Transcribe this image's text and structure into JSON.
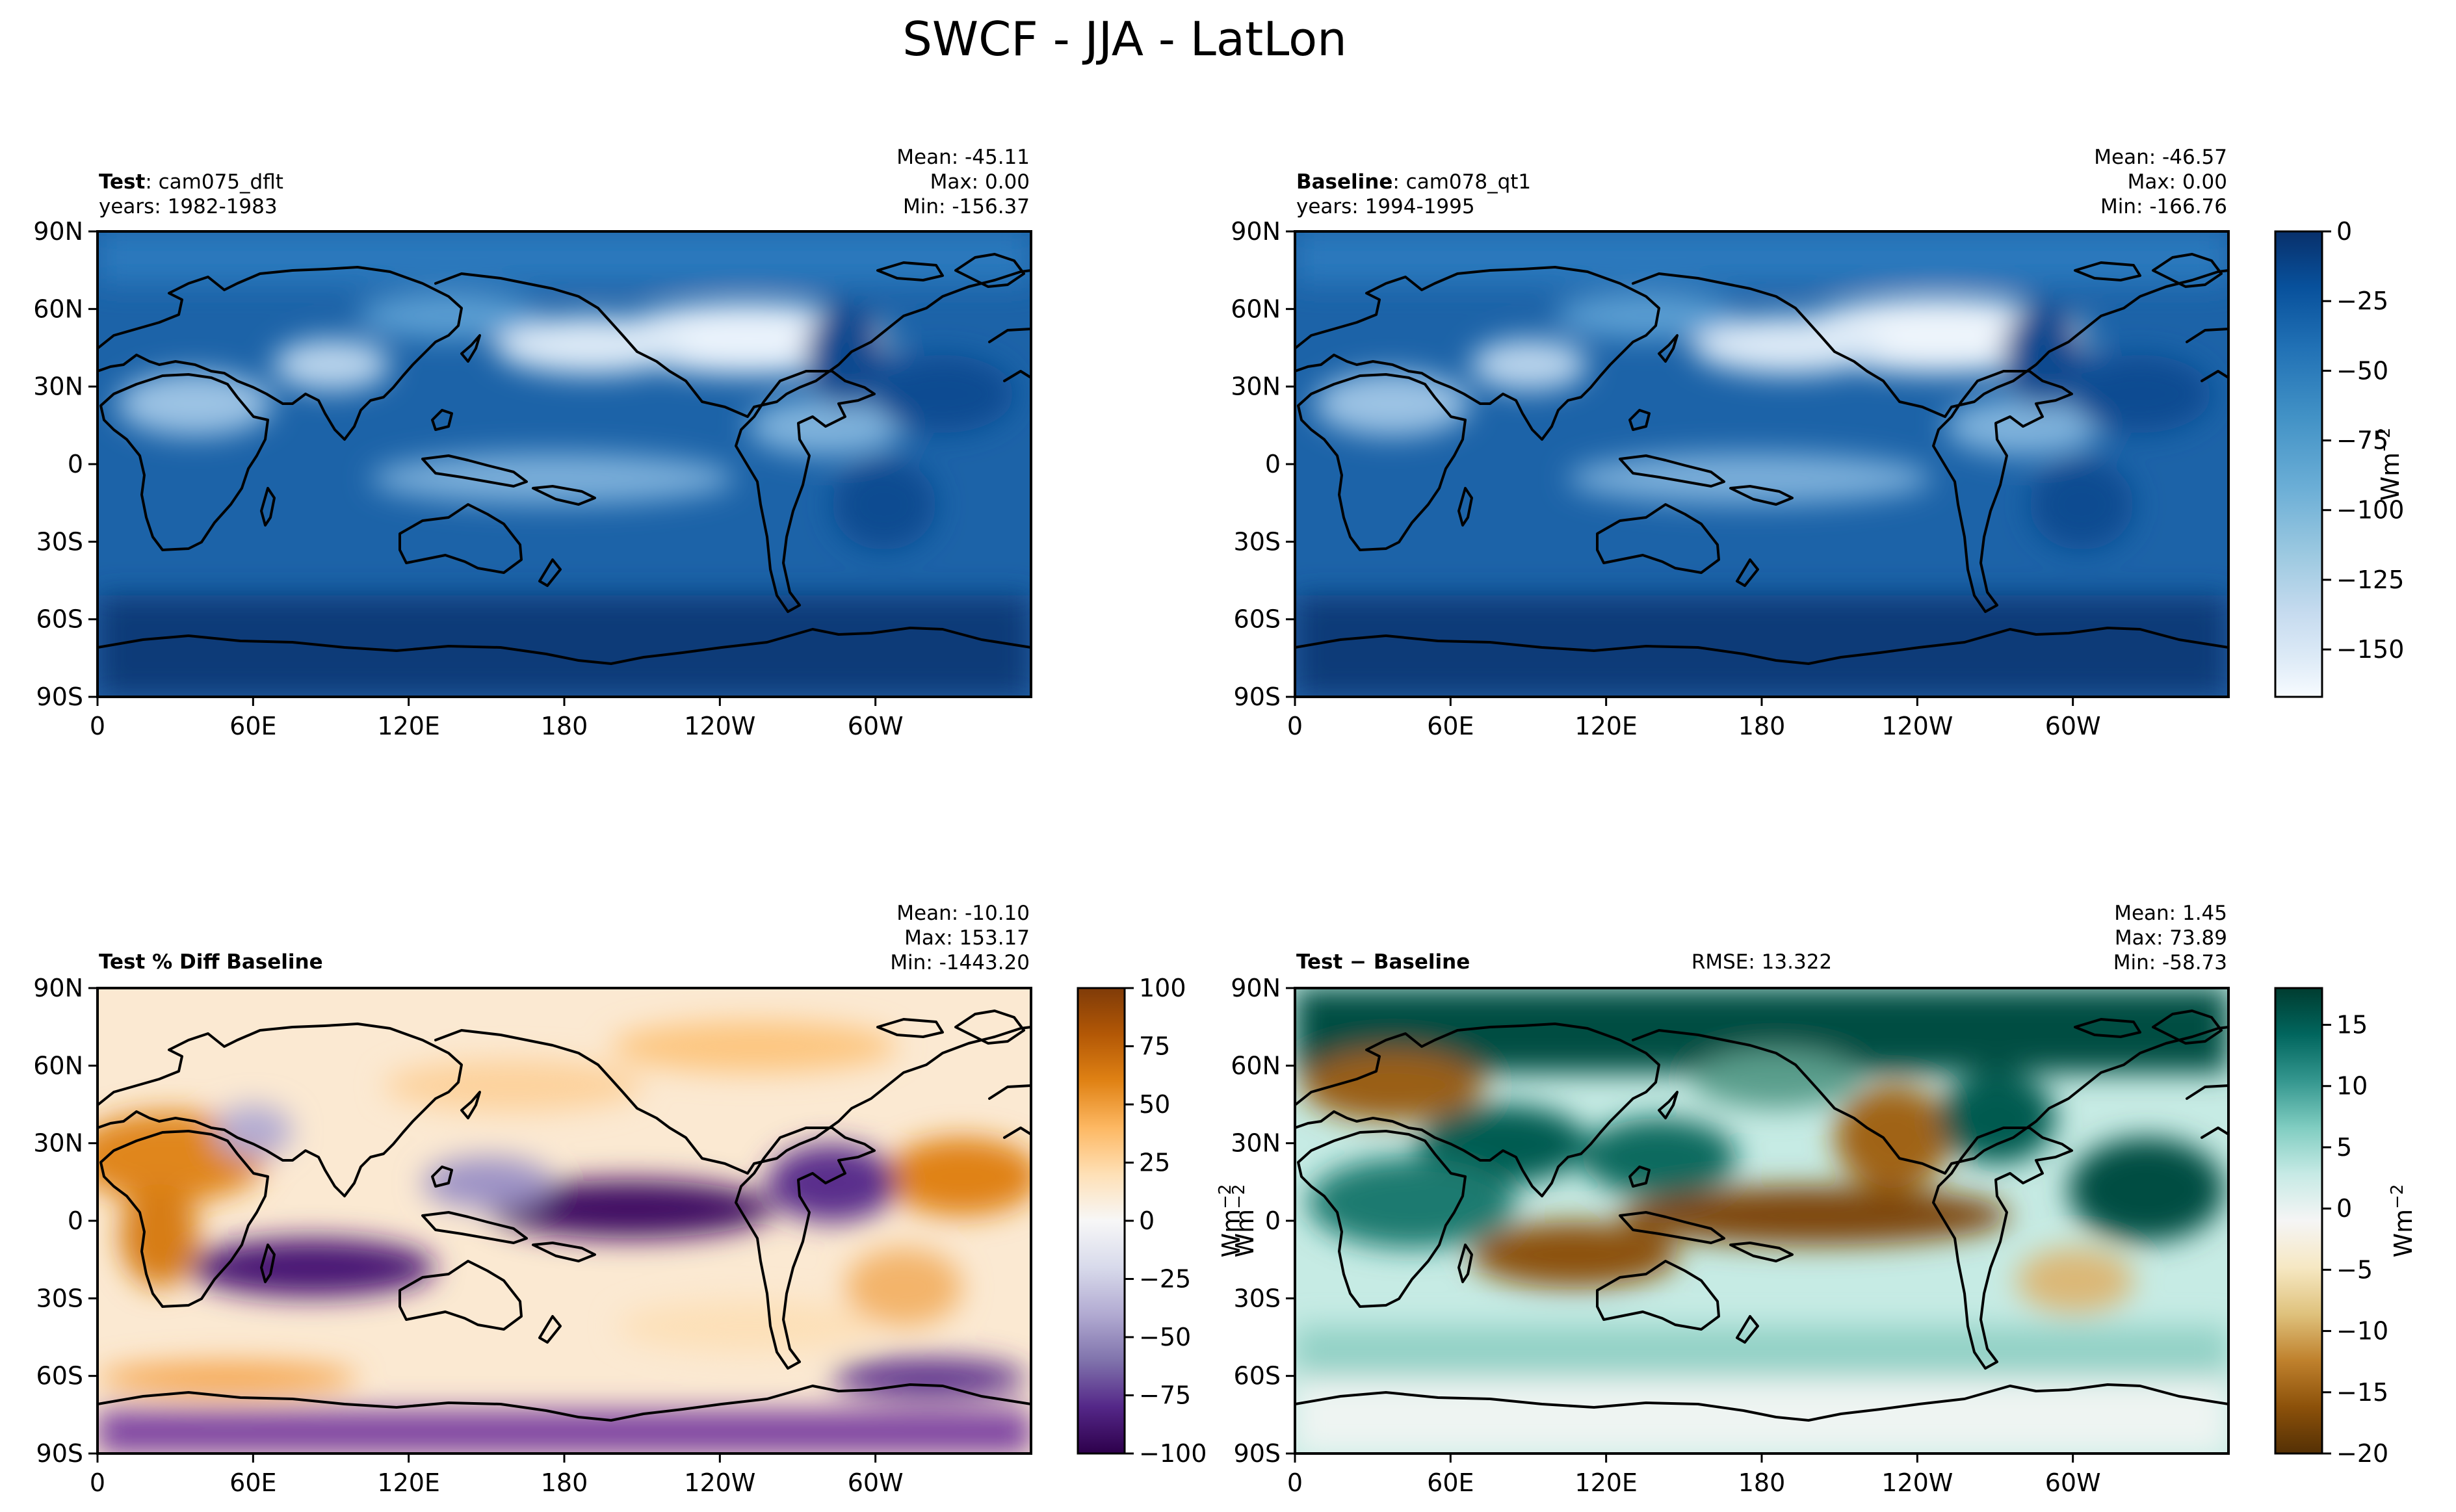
{
  "suptitle": "SWCF - JJA - LatLon",
  "colors": {
    "blues": [
      "#f7fbff",
      "#deebf7",
      "#c6dbef",
      "#9ecae1",
      "#6baed6",
      "#4292c6",
      "#2171b5",
      "#08519c",
      "#08306b"
    ],
    "puor": [
      "#2d004b",
      "#542788",
      "#8073ac",
      "#b2abd2",
      "#d8daeb",
      "#f7f7f7",
      "#fee0b6",
      "#fdb863",
      "#e08214",
      "#b35806",
      "#7f3b08"
    ],
    "brbg": [
      "#543005",
      "#8c510a",
      "#bf812d",
      "#dfc27d",
      "#f6e8c3",
      "#f5f5f5",
      "#c7eae5",
      "#80cdc1",
      "#35978f",
      "#01665e",
      "#003c30"
    ]
  },
  "chart_data": [
    {
      "type": "heatmap",
      "panel": "top-left",
      "title_bold": "Test",
      "title_rest": ": cam075_dflt",
      "years": "years: 1982-1983",
      "stats": {
        "mean": "Mean: -45.11",
        "max": "Max:  0.00",
        "min": "Min: -156.37"
      },
      "x_ticklabels": [
        "0",
        "60E",
        "120E",
        "180",
        "120W",
        "60W"
      ],
      "y_ticklabels": [
        "90N",
        "60N",
        "30N",
        "0",
        "30S",
        "60S",
        "90S"
      ],
      "xlim": [
        0,
        360
      ],
      "ylim": [
        -90,
        90
      ],
      "colormap": "Blues_r"
    },
    {
      "type": "heatmap",
      "panel": "top-right",
      "title_bold": "Baseline",
      "title_rest": ": cam078_qt1",
      "years": "years: 1994-1995",
      "stats": {
        "mean": "Mean: -46.57",
        "max": "Max:  0.00",
        "min": "Min: -166.76"
      },
      "x_ticklabels": [
        "0",
        "60E",
        "120E",
        "180",
        "120W",
        "60W"
      ],
      "y_ticklabels": [
        "90N",
        "60N",
        "30N",
        "0",
        "30S",
        "60S",
        "90S"
      ],
      "xlim": [
        0,
        360
      ],
      "ylim": [
        -90,
        90
      ],
      "colormap": "Blues_r",
      "colorbar": {
        "ticks": [
          "0",
          "−25",
          "−50",
          "−75",
          "−100",
          "−125",
          "−150"
        ],
        "range": [
          -167,
          0
        ],
        "label": "Wm",
        "label_exp": "−2"
      }
    },
    {
      "type": "heatmap",
      "panel": "bottom-left",
      "title_bold": "Test % Diff Baseline",
      "stats": {
        "mean": "Mean: -10.10",
        "max": "Max: 153.17",
        "min": "Min: -1443.20"
      },
      "x_ticklabels": [
        "0",
        "60E",
        "120E",
        "180",
        "120W",
        "60W"
      ],
      "y_ticklabels": [
        "90N",
        "60N",
        "30N",
        "0",
        "30S",
        "60S",
        "90S"
      ],
      "xlim": [
        0,
        360
      ],
      "ylim": [
        -90,
        90
      ],
      "colormap": "PuOr",
      "colorbar": {
        "ticks": [
          "100",
          "75",
          "50",
          "25",
          "0",
          "−25",
          "−50",
          "−75",
          "−100"
        ],
        "range": [
          -100,
          100
        ],
        "label": "Wm",
        "label_exp": "−2"
      }
    },
    {
      "type": "heatmap",
      "panel": "bottom-right",
      "title_bold": "Test",
      "title_rest": " − Baseline",
      "rmse": "RMSE: 13.322",
      "stats": {
        "mean": "Mean:  1.45",
        "max": "Max: 73.89",
        "min": "Min: -58.73"
      },
      "x_ticklabels": [
        "0",
        "60E",
        "120E",
        "180",
        "120W",
        "60W"
      ],
      "y_ticklabels": [
        "90N",
        "60N",
        "30N",
        "0",
        "30S",
        "60S",
        "90S"
      ],
      "xlim": [
        0,
        360
      ],
      "ylim": [
        -90,
        90
      ],
      "colormap": "BrBG",
      "colorbar": {
        "ticks": [
          "15",
          "10",
          "5",
          "0",
          "−5",
          "−10",
          "−15",
          "−20"
        ],
        "range": [
          -20,
          18
        ],
        "label": "Wm",
        "label_exp": "−2"
      }
    }
  ]
}
